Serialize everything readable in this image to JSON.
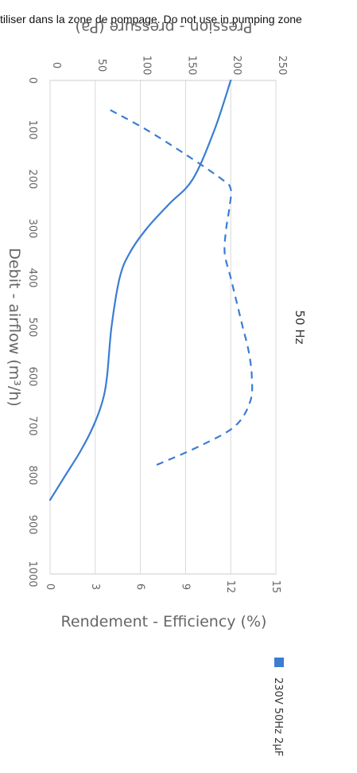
{
  "note": "tiliser dans la zone de pompage. Do not use in pumping zone",
  "chart_data": {
    "type": "line",
    "title": "50 Hz",
    "xlabel": "Debit - airflow (m³/h)",
    "ylabel_pressure": "Pression - pressure (Pa)",
    "ylabel_efficiency": "Rendement - Efficiency (%)",
    "xlim": [
      0,
      1000
    ],
    "ylim_pressure": [
      0,
      250
    ],
    "ylim_efficiency": [
      0,
      15
    ],
    "x_ticks": [
      "0",
      "100",
      "200",
      "300",
      "400",
      "500",
      "600",
      "700",
      "800",
      "900",
      "1000"
    ],
    "pressure_ticks": [
      "0",
      "50",
      "100",
      "150",
      "200",
      "250"
    ],
    "efficiency_ticks": [
      "0",
      "3",
      "6",
      "9",
      "12",
      "15"
    ],
    "grid": true,
    "legend_position": "bottom",
    "series": [
      {
        "name": "230V 50Hz 2µF",
        "color": "#3a7dd3",
        "pressure": {
          "x": [
            0,
            100,
            200,
            250,
            300,
            350,
            400,
            500,
            600,
            650,
            700,
            750,
            800,
            850
          ],
          "y": [
            200,
            182,
            158,
            132,
            107,
            88,
            77,
            68,
            63,
            58,
            48,
            34,
            17,
            0
          ]
        },
        "efficiency": {
          "x": [
            60,
            100,
            150,
            200,
            220,
            260,
            300,
            350,
            400,
            450,
            500,
            550,
            600,
            650,
            700,
            740,
            780
          ],
          "y": [
            4.0,
            6.4,
            9.0,
            11.4,
            12.0,
            11.9,
            11.7,
            11.6,
            12.0,
            12.4,
            12.8,
            13.2,
            13.4,
            13.3,
            12.3,
            10.0,
            7.0
          ]
        }
      }
    ]
  }
}
